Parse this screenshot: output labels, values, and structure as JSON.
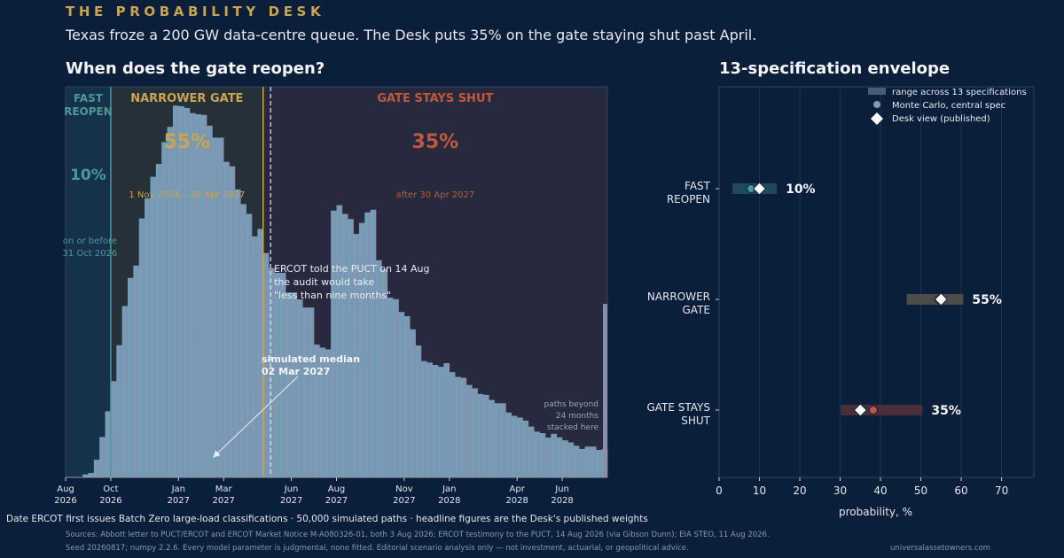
{
  "header": {
    "kicker": "THE PROBABILITY DESK",
    "subtitle": "Texas froze a 200 GW data-centre queue. The Desk puts 35% on the gate staying shut past April."
  },
  "left_panel": {
    "title": "When does the gate reopen?"
  },
  "right_panel": {
    "title": "13-specification envelope"
  },
  "colors": {
    "background": "#0b1e3a",
    "fast": "#4a9a96",
    "narrower": "#c9a552",
    "shut": "#c0583e",
    "bar_start": "#6ba3c0",
    "bar_end": "#8a8fa8"
  },
  "chart_data": [
    {
      "type": "bar",
      "chart": "histogram",
      "x_unit": "months from Aug 2026",
      "bin_width_months": 0.25,
      "x_range": [
        0,
        24
      ],
      "x_ticks": [
        {
          "month": 0,
          "label_line1": "Aug",
          "label_line2": "2026"
        },
        {
          "month": 2,
          "label_line1": "Oct",
          "label_line2": "2026"
        },
        {
          "month": 5,
          "label_line1": "Jan",
          "label_line2": "2027"
        },
        {
          "month": 7,
          "label_line1": "Mar",
          "label_line2": "2027"
        },
        {
          "month": 10,
          "label_line1": "Jun",
          "label_line2": "2027"
        },
        {
          "month": 12,
          "label_line1": "Aug",
          "label_line2": "2027"
        },
        {
          "month": 15,
          "label_line1": "Nov",
          "label_line2": "2027"
        },
        {
          "month": 17,
          "label_line1": "Jan",
          "label_line2": "2028"
        },
        {
          "month": 20,
          "label_line1": "Apr",
          "label_line2": "2028"
        },
        {
          "month": 22,
          "label_line1": "Jun",
          "label_line2": "2028"
        }
      ],
      "relative_density": [
        0,
        0,
        0,
        1,
        1.5,
        5.9,
        13.5,
        22.1,
        32.2,
        44.2,
        57.3,
        66.7,
        70.8,
        86.6,
        93.3,
        100.5,
        104.8,
        112.1,
        117.2,
        124.3,
        124.1,
        123.5,
        121.8,
        121.4,
        121.2,
        117.6,
        113.6,
        113.6,
        105.5,
        104.0,
        96.3,
        91.4,
        88.1,
        80.6,
        83.1,
        75.0,
        70.0,
        68.4,
        68.4,
        61.8,
        61.8,
        59.5,
        56.8,
        56.8,
        44.4,
        43.4,
        42.8,
        89.2,
        91.0,
        88.1,
        86.4,
        81.4,
        85.1,
        88.6,
        89.5,
        72.6,
        69.7,
        60.1,
        59.6,
        55.3,
        53.9,
        49.5,
        44.1,
        38.9,
        38.4,
        37.6,
        37.0,
        38.2,
        35.2,
        33.6,
        33.3,
        30.9,
        29.8,
        27.9,
        27.6,
        25.9,
        24.8,
        24.8,
        21.7,
        20.6,
        20.0,
        19.0,
        17.0,
        15.3,
        14.8,
        13.3,
        14.6,
        13.4,
        12.4,
        11.7,
        10.6,
        9.5,
        10.3,
        10.3,
        9.2,
        9.4,
        9.4,
        9.0,
        6.3,
        6.7,
        6.7,
        6.2,
        5.0,
        5.0,
        5.5,
        6.5,
        5.8,
        5.3,
        4.8,
        4.9,
        4.8,
        4.1,
        3.8,
        3.8,
        3.6,
        3.3,
        3.3,
        3.0,
        2.5,
        2.4,
        2.7,
        2.4,
        2.3,
        2.2,
        2.1,
        2.0,
        1.8,
        1.8,
        1.7,
        1.6,
        1.5,
        1.4,
        1.4,
        1.3,
        1.2,
        1.2,
        1.1,
        1.0,
        1.0,
        0.9,
        0.8,
        0.8,
        0.7,
        0.7,
        0.6,
        0.6,
        0.5,
        0.5,
        0.5,
        0.4,
        0.4,
        0.4,
        0.3,
        0.3,
        0.3,
        0.3,
        0.2,
        0.2,
        0.2,
        0.2,
        0.2,
        0.2,
        0.1,
        0.1,
        0.1,
        0.1,
        0.1,
        0.1,
        0.1,
        0.1,
        0.1,
        0.1,
        0.1,
        0.1,
        0.1,
        0.1,
        0.1,
        0.1,
        0.1,
        0.1,
        0.1,
        0.1,
        0.1,
        0.1,
        0.1,
        0.1,
        0.1,
        0.1,
        0.1,
        0.1,
        0.1,
        0.1,
        0.1,
        0.1,
        0.1,
        0.1,
        0.1,
        0.1,
        0.1,
        0.1,
        0.1,
        0.1,
        0.1,
        0.1,
        0.1,
        0.1,
        0.1,
        0.1,
        0.1,
        0.1,
        0.1,
        0.1,
        0.1,
        0.1,
        0.1,
        0.1,
        0.1,
        0.1,
        0.1,
        0.1,
        0.1,
        0.1,
        0.1,
        0.1,
        0.1,
        0.1,
        0.1,
        0.1,
        0.1,
        0.1,
        0.1,
        0.1,
        0.1,
        0.1,
        0.1,
        0.1,
        0.1,
        0.1,
        0.1,
        0.1,
        0.1,
        0.1,
        0.1,
        0.1,
        0.1,
        0.1,
        0.1,
        0.1,
        0.1,
        0.1,
        0.1,
        0.1,
        0.1,
        0.1,
        0.1,
        0.1,
        0.1,
        0.1,
        0.1,
        0.1,
        0.1,
        0.1,
        0.1,
        0.1,
        0.1,
        0.1,
        0.1,
        0.1,
        0.1,
        0.1,
        0.1,
        0.1,
        0.1,
        0.1,
        0.1,
        0.1,
        0.1,
        0.1,
        0.1,
        0.1,
        0.1,
        0.1,
        0.1,
        0.1,
        0.1,
        0.1,
        0.1,
        0.1,
        0.1,
        0.1,
        0.1,
        0.1,
        0.1,
        0.1,
        0.1,
        0.1,
        0.1,
        0.1,
        0.1,
        0.1,
        0.1,
        0.1,
        0.1,
        0.1,
        0.1,
        0.1,
        0.1,
        0.1,
        0.1,
        0.1,
        0.1,
        0.1,
        0.1,
        0.1,
        0.1,
        0.1,
        0.1,
        0.1,
        0.1,
        0.1,
        0.1,
        0.1,
        0.1,
        0.1,
        0.1,
        0.1,
        0.1,
        0.1,
        0.1,
        0.1,
        0.1,
        0.1,
        0.1,
        0.1,
        0.1,
        0.1,
        0.1,
        0.1,
        0.1,
        0.1,
        0.1,
        0.1,
        0.1,
        0.1,
        0.1,
        0.1,
        0.1,
        0.1,
        0.1,
        0.1,
        0.1,
        0.1,
        0.1,
        0.1,
        0.1,
        0.1,
        0.1,
        0.1,
        0.1,
        0.1,
        0.1,
        0.1,
        0.1,
        0.1,
        0.1,
        0.1,
        0.1,
        0.1,
        0.1,
        0.1,
        0.1,
        0.1,
        0.1,
        0.1,
        0.1,
        0.1,
        0.1,
        0.1,
        0.1
      ],
      "overflow_bar_density": 58,
      "fast_boundary_month": 2,
      "narrower_boundary_month": 8.75,
      "median_month": 7,
      "regions": [
        {
          "key": "fast",
          "label": "FAST REOPEN",
          "label_line1": "FAST",
          "label_line2": "REOPEN",
          "pct": "10%",
          "note_line1": "on or before",
          "note_line2": "31 Oct 2026"
        },
        {
          "key": "narrower",
          "label": "NARROWER GATE",
          "pct": "55%",
          "note": "1 Nov 2026  –  30 Apr 2027"
        },
        {
          "key": "shut",
          "label": "GATE STAYS SHUT",
          "pct": "35%",
          "note": "after 30 Apr 2027"
        }
      ],
      "annotations": {
        "ercot_line1": "ERCOT told the PUCT on 14 Aug",
        "ercot_line2": "the audit would take",
        "ercot_line3": "\"less than nine months\"",
        "median_line1": "simulated median",
        "median_line2": "02 Mar 2027",
        "overflow_line1": "paths beyond",
        "overflow_line2": "24 months",
        "overflow_line3": "stacked here"
      }
    },
    {
      "type": "scatter",
      "chart": "envelope",
      "xlabel": "probability, %",
      "xlim": [
        0,
        78
      ],
      "x_ticks": [
        0,
        10,
        20,
        30,
        40,
        50,
        60,
        70
      ],
      "legend": {
        "placement": "top-right",
        "range": "range across 13 specifications",
        "mc": "Monte Carlo, central spec",
        "desk": "Desk view (published)"
      },
      "rows": [
        {
          "label_line1": "FAST",
          "label_line2": "REOPEN",
          "range": [
            3.3,
            14.3
          ],
          "mc": 7.9,
          "desk": 10,
          "label": "10%",
          "color": "#4a9a96",
          "range_color": "#1e4a5c"
        },
        {
          "label_line1": "NARROWER",
          "label_line2": "GATE",
          "range": [
            46.5,
            60.5
          ],
          "mc": 54.5,
          "desk": 55,
          "label": "55%",
          "color": "#c9a552",
          "range_color": "#4b4d46"
        },
        {
          "label_line1": "GATE STAYS",
          "label_line2": "SHUT",
          "range": [
            30.2,
            50.4
          ],
          "mc": 38.2,
          "desk": 35,
          "label": "35%",
          "color": "#c0583e",
          "range_color": "#4a2e3a"
        }
      ]
    }
  ],
  "footer": {
    "caption": "Date ERCOT first issues Batch Zero large-load classifications  ·  50,000 simulated paths  ·  headline figures are the Desk's published weights",
    "sources": "Sources: Abbott letter to PUCT/ERCOT and ERCOT Market Notice M-A080326-01, both 3 Aug 2026; ERCOT testimony to the PUCT, 14 Aug 2026 (via Gibson Dunn); EIA STEO, 11 Aug 2026.",
    "seed": "Seed 20260817; numpy 2.2.6. Every model parameter is judgmental, none fitted. Editorial scenario analysis only — not investment, actuarial, or geopolitical advice.",
    "site": "universalassetowners.com"
  }
}
